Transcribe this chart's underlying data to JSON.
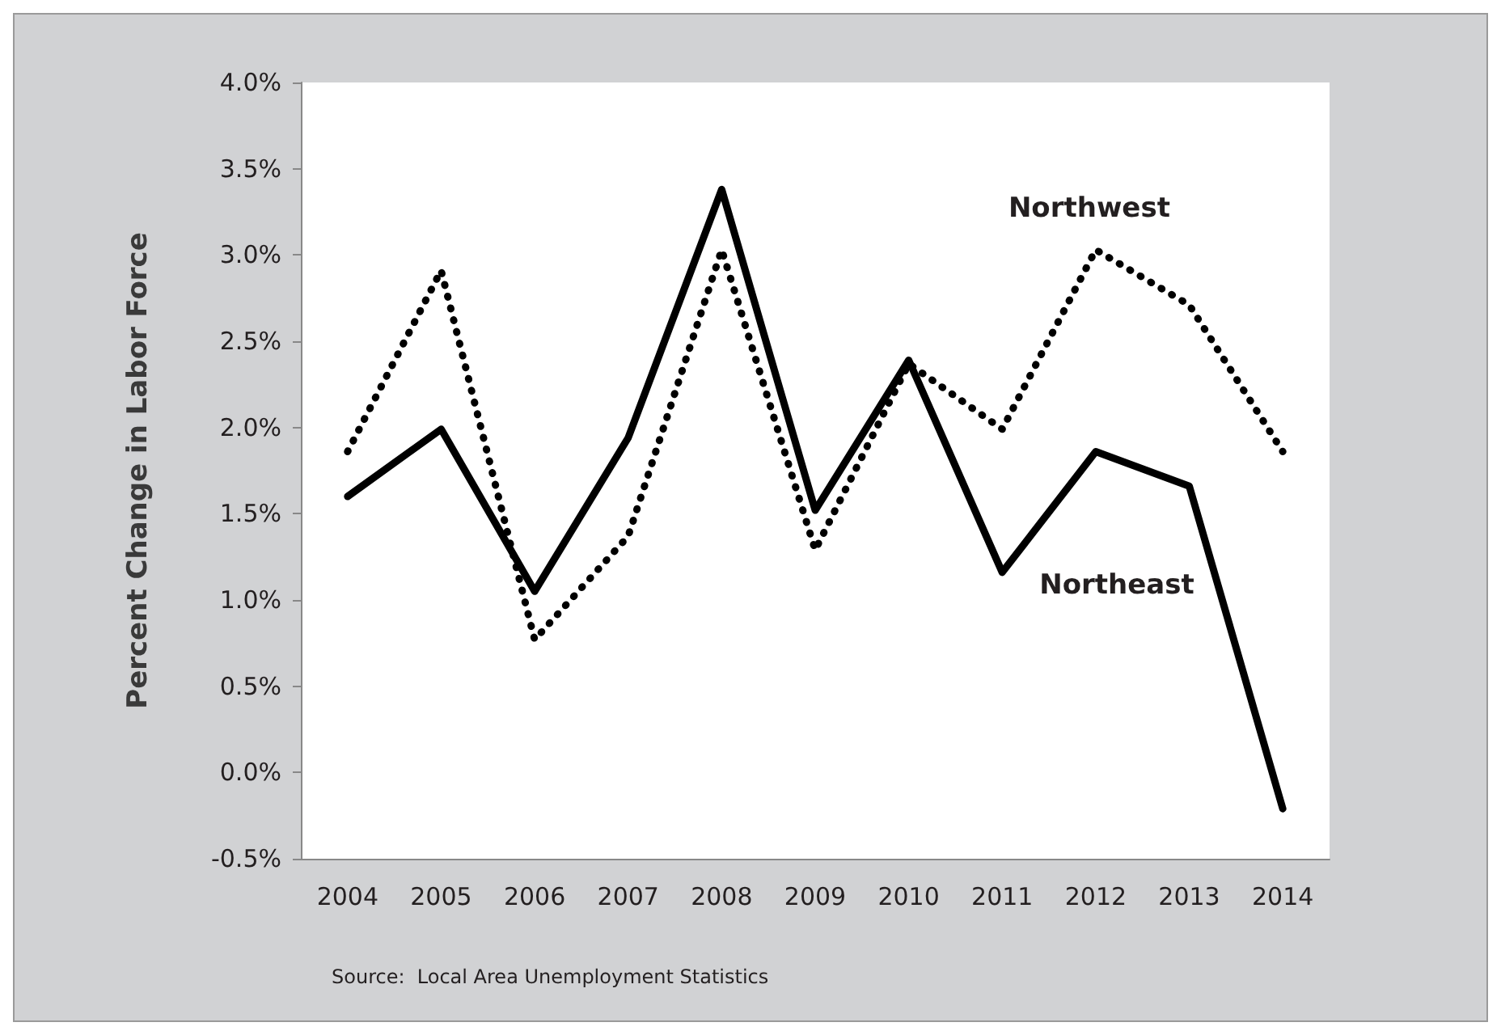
{
  "chart_data": {
    "type": "line",
    "ylabel": "Percent Change in Labor Force",
    "categories": [
      "2004",
      "2005",
      "2006",
      "2007",
      "2008",
      "2009",
      "2010",
      "2011",
      "2012",
      "2013",
      "2014"
    ],
    "series": [
      {
        "name": "Northwest",
        "color": "#000000",
        "line_style": "dotted",
        "values": [
          1.86,
          2.91,
          0.77,
          1.37,
          3.03,
          1.29,
          2.37,
          1.99,
          3.03,
          2.71,
          1.86
        ]
      },
      {
        "name": "Northeast",
        "color": "#000000",
        "line_style": "solid",
        "values": [
          1.6,
          1.99,
          1.05,
          1.94,
          3.38,
          1.52,
          2.39,
          1.16,
          1.86,
          1.66,
          -0.21
        ]
      }
    ],
    "ylim": [
      -0.5,
      4.0
    ],
    "yticks": [
      {
        "value": -0.5,
        "label": "-0.5%"
      },
      {
        "value": 0,
        "label": "0.0%"
      },
      {
        "value": 0.5,
        "label": "0.5%"
      },
      {
        "value": 1,
        "label": "1.0%"
      },
      {
        "value": 1.5,
        "label": "1.5%"
      },
      {
        "value": 2,
        "label": "2.0%"
      },
      {
        "value": 2.5,
        "label": "2.5%"
      },
      {
        "value": 3,
        "label": "3.0%"
      },
      {
        "value": 3.5,
        "label": "3.5%"
      },
      {
        "value": 4,
        "label": "4.0%"
      }
    ],
    "annotations": [
      "Source:  Local Area Unemployment Statistics"
    ],
    "grid": false,
    "legend": false,
    "marker": "none"
  }
}
